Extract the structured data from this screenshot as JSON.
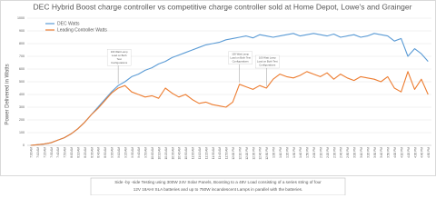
{
  "chart_data": {
    "type": "line",
    "title": "DEC Hybrid Boost charge controller vs competitive charge controller sold at Home Depot, Lowe's and Grainger",
    "y_label": "Power Delivered in Watts",
    "categories": [
      "7:00 AM",
      "7:10 AM",
      "7:20 AM",
      "7:30 AM",
      "7:40 AM",
      "7:50 AM",
      "8:00 AM",
      "8:10 AM",
      "8:20 AM",
      "8:30 AM",
      "8:40 AM",
      "8:50 AM",
      "9:00 AM",
      "9:10 AM",
      "9:20 AM",
      "9:30 AM",
      "9:40 AM",
      "9:50 AM",
      "10:00 AM",
      "10:10 AM",
      "10:20 AM",
      "10:30 AM",
      "10:40 AM",
      "10:50 AM",
      "11:00 AM",
      "11:10 AM",
      "11:20 AM",
      "11:30 AM",
      "11:40 AM",
      "11:50 AM",
      "12:00 PM",
      "12:10 PM",
      "12:20 PM",
      "12:30 PM",
      "12:40 PM",
      "12:50 PM",
      "1:00 PM",
      "1:10 PM",
      "1:20 PM",
      "1:30 PM",
      "1:40 PM",
      "1:50 PM",
      "2:00 PM",
      "2:10 PM",
      "2:20 PM",
      "2:30 PM",
      "2:40 PM",
      "2:50 PM",
      "3:00 PM",
      "3:10 PM",
      "3:20 PM",
      "3:30 PM",
      "3:40 PM",
      "3:50 PM",
      "4:00 PM",
      "4:10 PM",
      "4:20 PM",
      "4:30 PM",
      "4:40 PM",
      "4:50 PM"
    ],
    "series": [
      {
        "name": "DEC Watts",
        "color": "#5b9bd5",
        "values": [
          0,
          5,
          10,
          20,
          40,
          60,
          90,
          130,
          180,
          240,
          300,
          360,
          420,
          470,
          500,
          540,
          560,
          590,
          610,
          640,
          660,
          690,
          710,
          730,
          750,
          770,
          790,
          800,
          810,
          830,
          840,
          850,
          860,
          845,
          870,
          860,
          850,
          860,
          870,
          880,
          860,
          870,
          880,
          870,
          860,
          875,
          850,
          860,
          870,
          850,
          860,
          880,
          870,
          860,
          820,
          840,
          700,
          760,
          720,
          660
        ]
      },
      {
        "name": "Leading Controller Watts",
        "color": "#ed7d31",
        "values": [
          0,
          5,
          10,
          20,
          40,
          60,
          90,
          130,
          180,
          240,
          290,
          350,
          410,
          450,
          470,
          420,
          400,
          380,
          390,
          370,
          450,
          410,
          380,
          400,
          360,
          330,
          340,
          320,
          310,
          300,
          340,
          480,
          460,
          440,
          470,
          450,
          520,
          560,
          540,
          530,
          550,
          580,
          560,
          540,
          570,
          520,
          560,
          530,
          510,
          540,
          530,
          520,
          500,
          540,
          450,
          420,
          580,
          440,
          520,
          400
        ]
      }
    ],
    "ylim": [
      0,
      1000
    ],
    "yticks": [
      0,
      100,
      200,
      300,
      400,
      500,
      600,
      700,
      800,
      900,
      1000
    ],
    "grid": true,
    "legend": "top-left",
    "annotations": [
      {
        "index": 13,
        "value": 470,
        "lines": [
          "100 Watt Lamp",
          "Load on Both",
          "Test",
          "Configurations"
        ]
      },
      {
        "index": 31,
        "value": 480,
        "lines": [
          "100 Watt Lamp",
          "Load on Both Test",
          "Configurations"
        ]
      },
      {
        "index": 35,
        "value": 450,
        "lines": [
          "100 Watt Lamp",
          "Load on Both Test",
          "Configurations"
        ]
      }
    ],
    "caption": [
      "Side -by -side Testing using 300W 24V Solar Panels, Boosting to a 48V Load consisting of a series string of four",
      "12V 18AHr SLA batteries and up to 750W incandescent Lamps in parallel with the batteries."
    ]
  }
}
